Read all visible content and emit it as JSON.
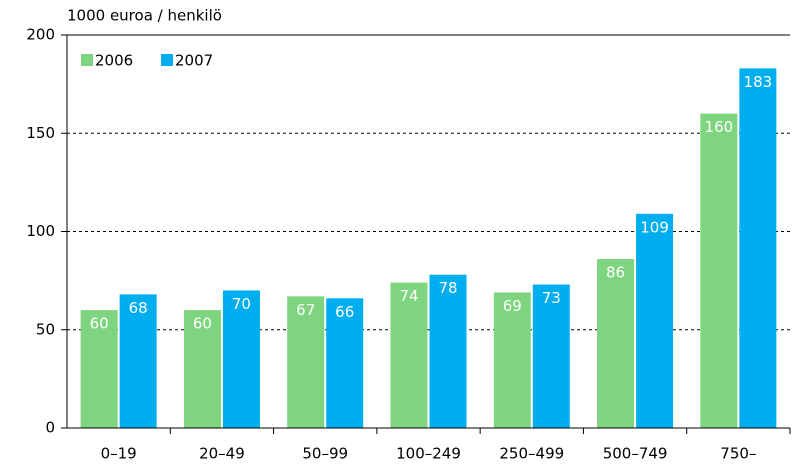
{
  "chart_data": {
    "type": "bar",
    "y_axis_label": "1000 euroa / henkilö",
    "categories": [
      "0–19",
      "20–49",
      "50–99",
      "100–249",
      "250–499",
      "500–749",
      "750–"
    ],
    "series": [
      {
        "name": "2006",
        "color": "#7fd47f",
        "values": [
          60,
          60,
          67,
          74,
          69,
          86,
          160
        ]
      },
      {
        "name": "2007",
        "color": "#00aeef",
        "values": [
          68,
          70,
          66,
          78,
          73,
          109,
          183
        ]
      }
    ],
    "ylim": [
      0,
      200
    ],
    "yticks": [
      0,
      50,
      100,
      150,
      200
    ],
    "grid": true,
    "legend": "top-left"
  }
}
